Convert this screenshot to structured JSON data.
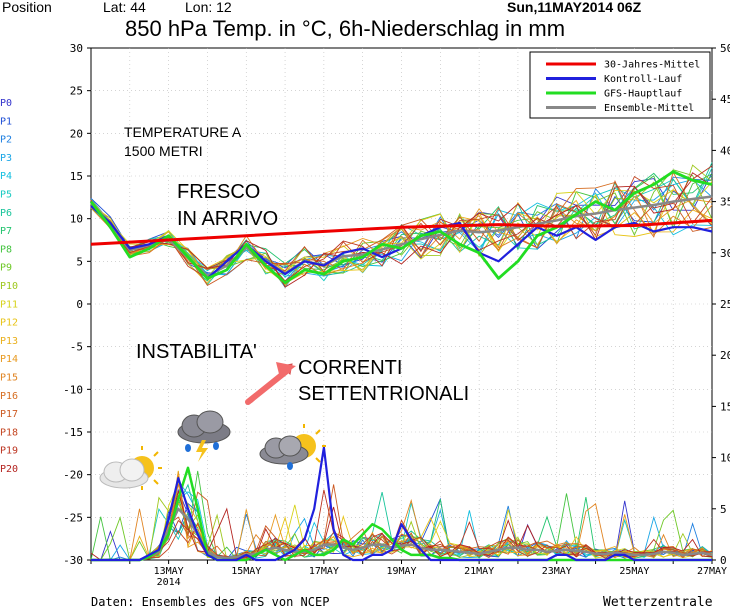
{
  "header": {
    "position_label": "Position",
    "lat_label": "Lat: 44",
    "lon_label": "Lon: 12",
    "date": "Sun,11MAY2014 06Z",
    "title": "850 hPa Temp. in °C, 6h-Niederschlag in mm"
  },
  "footer": {
    "source": "Daten: Ensembles des GFS von NCEP",
    "brand": "Wetterzentrale"
  },
  "annotations": {
    "temp_note_line1": "TEMPERATURE A",
    "temp_note_line2": "1500 METRI",
    "fresco_line1": "FRESCO",
    "fresco_line2": "IN ARRIVO",
    "instabilita": "INSTABILITA'",
    "correnti_line1": "CORRENTI",
    "correnti_line2": "SETTENTRIONALI"
  },
  "icons": [
    "partly-cloudy-icon",
    "thunderstorm-icon",
    "sun-shower-icon",
    "arrow-icon"
  ],
  "chart_data": {
    "type": "line",
    "title": "850 hPa Temp. in °C, 6h-Niederschlag in mm",
    "left_axis": {
      "ylim": [
        -30,
        30
      ],
      "ticks": [
        30,
        25,
        20,
        15,
        10,
        5,
        0,
        -5,
        -10,
        -15,
        -20,
        -25,
        -30
      ]
    },
    "right_axis": {
      "ylim": [
        0,
        50
      ],
      "ticks": [
        50,
        45,
        40,
        35,
        30,
        25,
        20,
        15,
        10,
        5,
        0
      ]
    },
    "x_ticks": [
      {
        "day": 2,
        "label": "13MAY",
        "sub": "2014"
      },
      {
        "day": 4,
        "label": "15MAY",
        "sub": ""
      },
      {
        "day": 6,
        "label": "17MAY",
        "sub": ""
      },
      {
        "day": 8,
        "label": "19MAY",
        "sub": ""
      },
      {
        "day": 10,
        "label": "21MAY",
        "sub": ""
      },
      {
        "day": 12,
        "label": "23MAY",
        "sub": ""
      },
      {
        "day": 14,
        "label": "25MAY",
        "sub": ""
      },
      {
        "day": 16,
        "label": "27MAY",
        "sub": ""
      }
    ],
    "xlim": [
      0,
      16
    ],
    "legend": {
      "placement": "top-right",
      "entries": [
        {
          "name": "30-Jahres-Mittel",
          "color": "#ee0000"
        },
        {
          "name": "Kontroll-Lauf",
          "color": "#2020dd"
        },
        {
          "name": "GFS-Hauptlauf",
          "color": "#22dd22"
        },
        {
          "name": "Ensemble-Mittel",
          "color": "#888888"
        }
      ]
    },
    "members": [
      {
        "name": "P0",
        "color": "#3333cc"
      },
      {
        "name": "P1",
        "color": "#1f4fd6"
      },
      {
        "name": "P2",
        "color": "#1e7fe0"
      },
      {
        "name": "P3",
        "color": "#1aa6e6"
      },
      {
        "name": "P4",
        "color": "#12bfe0"
      },
      {
        "name": "P5",
        "color": "#17c9c0"
      },
      {
        "name": "P6",
        "color": "#18c49a"
      },
      {
        "name": "P7",
        "color": "#22c46e"
      },
      {
        "name": "P8",
        "color": "#44c440"
      },
      {
        "name": "P9",
        "color": "#6ec826"
      },
      {
        "name": "P10",
        "color": "#9ec81e"
      },
      {
        "name": "P11",
        "color": "#d6d21a"
      },
      {
        "name": "P12",
        "color": "#e8c418"
      },
      {
        "name": "P13",
        "color": "#eab01c"
      },
      {
        "name": "P14",
        "color": "#e89a20"
      },
      {
        "name": "P15",
        "color": "#e08422"
      },
      {
        "name": "P16",
        "color": "#d66e22"
      },
      {
        "name": "P17",
        "color": "#cc5a22"
      },
      {
        "name": "P18",
        "color": "#c44622"
      },
      {
        "name": "P19",
        "color": "#bc3420"
      },
      {
        "name": "P20",
        "color": "#b42420"
      }
    ],
    "clim_x": [
      0,
      4,
      8,
      10.5,
      12,
      14,
      16
    ],
    "clim_y": [
      7.0,
      8.0,
      9.0,
      9.3,
      9.1,
      9.2,
      9.8
    ],
    "temp_x": [
      0,
      0.5,
      1,
      1.5,
      2,
      2.5,
      3,
      3.5,
      4,
      4.5,
      5,
      5.5,
      6,
      6.5,
      7,
      7.5,
      8,
      8.5,
      9,
      9.5,
      10,
      10.5,
      11,
      11.5,
      12,
      12.5,
      13,
      13.5,
      14,
      14.5,
      15,
      15.5,
      16
    ],
    "ctrl_temp": [
      11.5,
      9.5,
      6.5,
      7,
      8,
      5.5,
      3,
      5,
      7,
      5,
      3.5,
      5,
      4.5,
      6,
      6.5,
      5.5,
      6.5,
      8,
      9,
      9.5,
      6,
      5,
      7,
      9,
      8,
      9,
      7.5,
      9,
      9.5,
      8.5,
      9,
      9,
      8.5
    ],
    "gfs_temp": [
      12,
      9,
      5.5,
      6.5,
      8,
      5.5,
      3,
      4,
      7,
      4.5,
      2.5,
      4,
      3.5,
      5,
      5.5,
      7,
      6.5,
      8,
      8.5,
      7,
      6,
      3,
      5,
      8,
      9,
      10.5,
      12,
      11,
      13,
      14,
      15.5,
      14.5,
      14
    ],
    "mean_temp": [
      11.8,
      9.5,
      6.3,
      6.9,
      7.6,
      5.4,
      3.3,
      4.5,
      6.6,
      5.1,
      3.6,
      5.0,
      4.6,
      5.6,
      5.8,
      6.4,
      7.0,
      7.6,
      8.1,
      8.6,
      8.4,
      8.6,
      9.0,
      9.4,
      9.8,
      10.3,
      10.6,
      11.0,
      11.3,
      11.6,
      12.0,
      12.3,
      12.6
    ],
    "ctrl_precip": [
      0,
      0,
      0,
      0,
      0,
      0,
      0.5,
      1,
      4,
      8,
      5,
      2.5,
      0.5,
      0,
      0,
      0,
      0.5,
      0,
      0,
      0,
      0.5,
      1,
      2,
      5,
      11,
      3,
      0.5,
      0,
      0,
      0.5,
      0.5,
      1,
      3.5,
      2,
      1,
      0,
      0,
      0,
      0,
      0,
      0,
      0,
      0,
      0,
      0,
      0,
      0,
      0,
      0.5,
      0.5,
      0,
      0,
      0,
      0,
      0.5,
      0.5,
      0,
      0,
      0,
      0,
      0,
      0,
      0,
      0,
      0
    ],
    "gfs_precip": [
      0,
      0,
      0,
      0,
      0,
      0,
      0.3,
      1,
      2.5,
      6,
      9,
      5,
      0.5,
      0,
      0,
      0,
      0,
      0.5,
      1,
      0.5,
      0,
      0.5,
      1,
      0.5,
      0.5,
      1,
      2,
      1.5,
      2.5,
      3.5,
      3,
      2,
      1,
      0.5,
      0.5,
      0.5,
      0.2,
      0.2,
      0,
      0,
      0,
      0,
      0,
      0,
      0,
      0,
      0,
      0,
      0,
      0,
      0,
      0,
      0,
      0,
      0,
      0,
      0,
      0,
      0,
      0,
      0,
      0,
      0,
      0,
      0
    ],
    "mean_precip": [
      0,
      0,
      0,
      0,
      0,
      0,
      0.3,
      0.8,
      3,
      5,
      4,
      2.5,
      0.8,
      0.3,
      0.2,
      0.3,
      0.5,
      0.6,
      1,
      1.2,
      1,
      0.8,
      0.8,
      1,
      1.5,
      1.5,
      1.2,
      1,
      1.2,
      1.5,
      1.5,
      1.2,
      1.4,
      1.5,
      1.2,
      1,
      1,
      0.9,
      0.8,
      0.7,
      0.6,
      0.8,
      1,
      1.2,
      1.2,
      1,
      1,
      0.8,
      0.9,
      1,
      0.9,
      0.8,
      0.6,
      0.6,
      0.7,
      0.6,
      0.5,
      0.5,
      0.6,
      0.8,
      0.7,
      0.5,
      0.6,
      0.7,
      0.5
    ]
  }
}
